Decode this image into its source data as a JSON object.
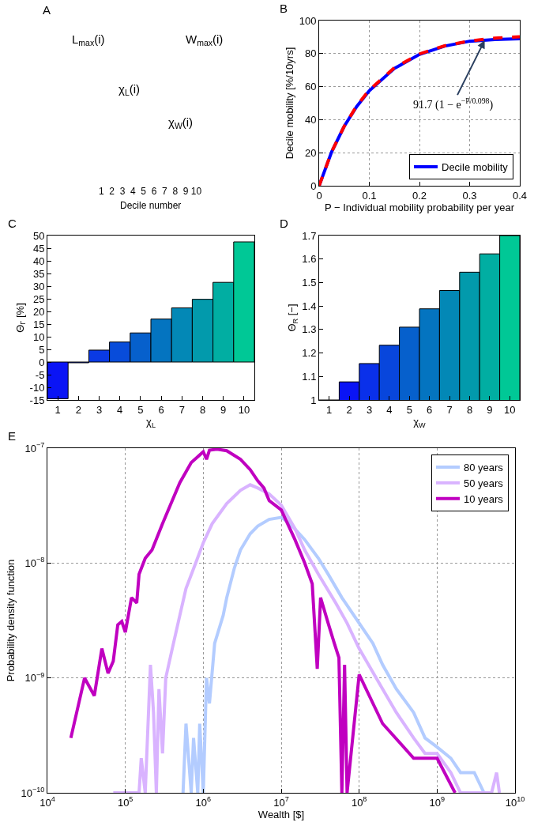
{
  "chart_data": [
    {
      "type": "other",
      "title": "A",
      "annotations": [
        "L$_{max}$(i)",
        "W$_{max}$(i)",
        "χ$_{L}$(i)",
        "χ$_{W}$(i)",
        "1  2  3  4  5  6  7  8  9 10",
        "Decile number"
      ]
    },
    {
      "type": "line",
      "title": "B",
      "xlabel": "P − Individual mobility probability per year",
      "ylabel": "Decile mobility [%/10yrs]",
      "x": [
        0,
        0.025,
        0.05,
        0.075,
        0.1,
        0.15,
        0.2,
        0.25,
        0.3,
        0.35,
        0.4
      ],
      "series": [
        {
          "name": "Decile mobility",
          "color": "#0000ff",
          "values": [
            0,
            20.5,
            36,
            48,
            57.5,
            71,
            79.5,
            84.5,
            87.5,
            88.5,
            89
          ]
        },
        {
          "color": "#ff0000",
          "line_style": "dashed",
          "values": [
            0,
            20.7,
            36,
            48.4,
            58,
            71.4,
            79.8,
            84.7,
            87.6,
            89.4,
            90.2
          ]
        }
      ],
      "xlim": [
        0,
        0.4
      ],
      "xticks": [
        0,
        0.1,
        0.2,
        0.3,
        0.4
      ],
      "ylim": [
        0,
        100
      ],
      "yticks": [
        0,
        20,
        40,
        60,
        80,
        100
      ],
      "grid": true,
      "legend": "bottom right",
      "annotations": [
        {
          "text": "91.7 (1 − e$^{−P/0.098}$)",
          "x": 0.33,
          "y": 88
        }
      ]
    },
    {
      "type": "bar",
      "title": "C",
      "xlabel": "χ$_{L}$",
      "ylabel": "Θ$_{Γ}$ [%]",
      "categories": [
        "1",
        "2",
        "3",
        "4",
        "5",
        "6",
        "7",
        "8",
        "9",
        "10"
      ],
      "values": [
        -14.5,
        -0.3,
        4.7,
        7.9,
        11.5,
        17,
        21.4,
        24.8,
        31.5,
        47.5
      ],
      "colors": [
        "#0a14f5",
        "#0a28ee",
        "#0a3ae4",
        "#084cda",
        "#0660cc",
        "#0474c0",
        "#0388b6",
        "#029aac",
        "#01aea2",
        "#00c896"
      ],
      "ylim": [
        -15,
        50
      ],
      "yticks": [
        -15,
        -10,
        -5,
        0,
        5,
        10,
        15,
        20,
        25,
        30,
        35,
        40,
        45,
        50
      ]
    },
    {
      "type": "bar",
      "title": "D",
      "xlabel": "χ$_{W}$",
      "ylabel": "Θ$_{R}$ [−]",
      "categories": [
        "1",
        "2",
        "3",
        "4",
        "5",
        "6",
        "7",
        "8",
        "9",
        "10"
      ],
      "values": [
        1.0,
        1.077,
        1.155,
        1.233,
        1.31,
        1.388,
        1.466,
        1.544,
        1.622,
        1.7
      ],
      "colors": [
        "#0a0af8",
        "#0a14f5",
        "#0a30ea",
        "#0846dc",
        "#0660cc",
        "#0474c0",
        "#0388b6",
        "#029aac",
        "#01aea2",
        "#00c896"
      ],
      "ylim": [
        1,
        1.7
      ],
      "yticks": [
        1,
        1.1,
        1.2,
        1.3,
        1.4,
        1.5,
        1.6,
        1.7
      ]
    },
    {
      "type": "line",
      "title": "E",
      "xlabel": "Wealth [$]",
      "ylabel": "Probability density function",
      "log": "xy",
      "series": [
        {
          "name": "80 years",
          "color": "#b3ccff",
          "x": [
            550000,
            600000,
            700000,
            750000,
            850000,
            900000,
            1000000,
            1100000,
            1200000,
            1400000,
            1800000,
            2000000,
            2500000,
            3000000,
            4000000,
            5000000,
            7000000,
            10000000,
            13000000,
            20000000,
            30000000,
            40000000,
            60000000,
            100000000,
            150000000,
            200000000,
            300000000,
            500000000,
            700000000,
            1000000000,
            1500000000,
            2000000000,
            3000000000,
            4000000000
          ],
          "values": [
            1e-10,
            4e-10,
            1e-10,
            3e-10,
            1e-10,
            4e-10,
            1e-10,
            1e-09,
            6e-10,
            2e-09,
            3.5e-09,
            5e-09,
            9e-09,
            1.3e-08,
            1.8e-08,
            2.1e-08,
            2.4e-08,
            2.5e-08,
            2.2e-08,
            1.6e-08,
            1.1e-08,
            8e-09,
            5e-09,
            3e-09,
            2e-09,
            1.3e-09,
            8e-10,
            5e-10,
            3e-10,
            2.5e-10,
            2e-10,
            1.5e-10,
            1.5e-10,
            1e-10
          ]
        },
        {
          "name": "50 years",
          "color": "#d9b3ff",
          "x": [
            70000,
            150000,
            160000,
            180000,
            210000,
            230000,
            250000,
            270000,
            300000,
            330000,
            400000,
            500000,
            600000,
            800000,
            1000000,
            1300000,
            2000000,
            3000000,
            4000000,
            5000000,
            7000000,
            10000000,
            15000000,
            20000000,
            30000000,
            50000000,
            70000000,
            100000000,
            200000000,
            300000000,
            500000000,
            700000000,
            1000000000,
            1500000000,
            2000000000,
            5000000000,
            5800000000,
            6300000000
          ],
          "values": [
            1e-10,
            1e-10,
            2e-10,
            1e-10,
            1.3e-09,
            5e-10,
            1e-10,
            8e-10,
            2.2e-10,
            1e-09,
            1.8e-09,
            3.5e-09,
            6e-09,
            1e-08,
            1.5e-08,
            2.2e-08,
            3.3e-08,
            4.3e-08,
            4.8e-08,
            4.5e-08,
            4e-08,
            3.2e-08,
            2e-08,
            1.3e-08,
            8e-09,
            4.5e-09,
            3e-09,
            1.8e-09,
            8e-10,
            5e-10,
            3e-10,
            2.2e-10,
            2.2e-10,
            1.5e-10,
            1e-10,
            1e-10,
            1.5e-10,
            1e-10
          ]
        },
        {
          "name": "10 years",
          "color": "#c000c0",
          "x": [
            20000,
            30000,
            40000,
            50000,
            60000,
            70000,
            80000,
            90000,
            100000,
            120000,
            140000,
            150000,
            180000,
            220000,
            300000,
            400000,
            500000,
            700000,
            1000000,
            1100000,
            1200000,
            1500000,
            2000000,
            3000000,
            4000000,
            5000000,
            6000000,
            7000000,
            10000000,
            15000000,
            20000000,
            25000000,
            29000000,
            32000000,
            40000000,
            48000000,
            55000000,
            60000000,
            65000000,
            70000000,
            100000000,
            200000000,
            500000000,
            1000000000,
            1700000000
          ],
          "values": [
            3e-10,
            1e-09,
            7e-10,
            1.8e-09,
            1.1e-09,
            1.4e-09,
            2.9e-09,
            3.1e-09,
            2.5e-09,
            5e-09,
            4.5e-09,
            8e-09,
            1.1e-08,
            1.3e-08,
            2.2e-08,
            3.5e-08,
            5e-08,
            7.5e-08,
            9.3e-08,
            8e-08,
            9.6e-08,
            9.8e-08,
            9.5e-08,
            8e-08,
            6.5e-08,
            5.2e-08,
            4.5e-08,
            3.5e-08,
            2.9e-08,
            1.6e-08,
            1e-08,
            6.6e-09,
            1.2e-09,
            5e-09,
            3e-09,
            2e-09,
            1.5e-09,
            1e-10,
            1.3e-09,
            1e-10,
            1.07e-09,
            4e-10,
            2e-10,
            2e-10,
            1e-10
          ]
        }
      ],
      "xlim": [
        10000,
        10000000000
      ],
      "xticks": [
        {
          "value": 10000,
          "label": "10$^{4}$"
        },
        {
          "value": 100000,
          "label": "10$^{5}$"
        },
        {
          "value": 1000000,
          "label": "10$^{6}$"
        },
        {
          "value": 10000000,
          "label": "10$^{7}$"
        },
        {
          "value": 100000000,
          "label": "10$^{8}$"
        },
        {
          "value": 1000000000,
          "label": "10$^{9}$"
        },
        {
          "value": 10000000000,
          "label": "10$^{10}$"
        }
      ],
      "ylim": [
        1e-10,
        1e-07
      ],
      "yticks": [
        {
          "value": 1e-10,
          "label": "10$^{−10}$"
        },
        {
          "value": 1e-09,
          "label": "10$^{−9}$"
        },
        {
          "value": 1e-08,
          "label": "10$^{−8}$"
        },
        {
          "value": 1e-07,
          "label": "10$^{−7}$"
        }
      ],
      "grid": true,
      "legend": "top right"
    }
  ]
}
